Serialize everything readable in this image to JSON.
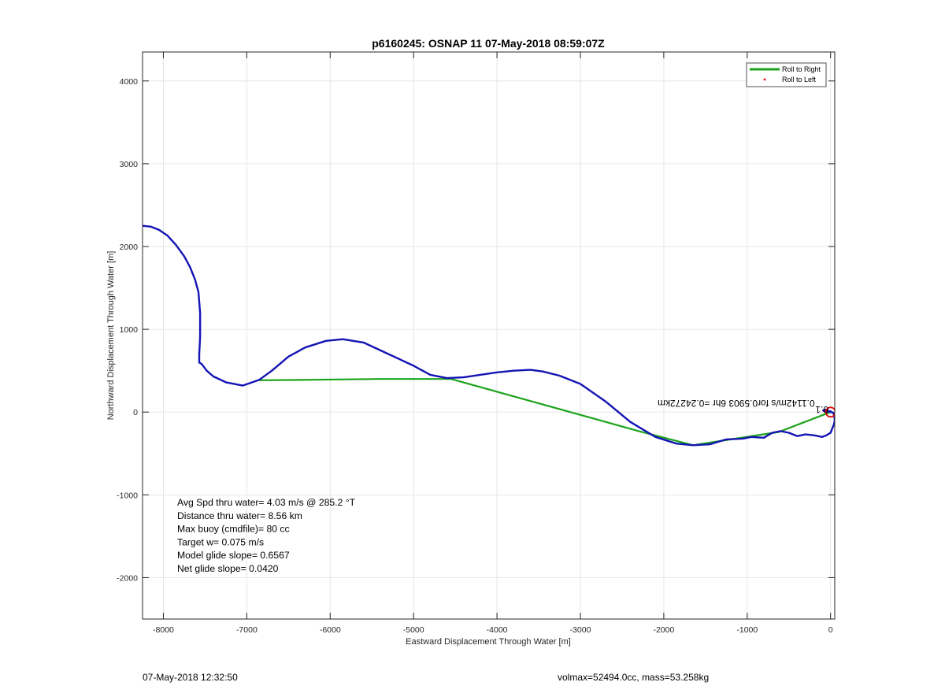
{
  "chart_data": {
    "type": "line",
    "title": "p6160245: OSNAP 11 07-May-2018 08:59:07Z",
    "xlabel": "Eastward Displacement Through Water [m]",
    "ylabel": "Northward Displacement Through Water [m]",
    "xlim": [
      -8250,
      50
    ],
    "ylim": [
      -2500,
      4350
    ],
    "xticks": [
      -8000,
      -7000,
      -6000,
      -5000,
      -4000,
      -3000,
      -2000,
      -1000,
      0
    ],
    "yticks": [
      -2000,
      -1000,
      0,
      1000,
      2000,
      3000,
      4000
    ],
    "grid": true,
    "legend_position": "top-right",
    "legend": [
      {
        "label": "Roll to Right",
        "color": "#1aa31a",
        "style": "line"
      },
      {
        "label": "Roll to Left",
        "color": "#ff0000",
        "style": "dot"
      }
    ],
    "series": [
      {
        "name": "Roll to Right",
        "color": "#1aa31a",
        "x": [
          0,
          -620,
          -1650,
          -2300,
          -4550,
          -5400,
          -6200,
          -6850
        ],
        "y": [
          0,
          -240,
          -400,
          -230,
          400,
          400,
          390,
          385
        ]
      },
      {
        "color": "#1414b4",
        "x": [
          -8250,
          -8150,
          -8050,
          -7950,
          -7850,
          -7750,
          -7680,
          -7620,
          -7580,
          -7560,
          -7560,
          -7570,
          -7570,
          -7540,
          -7480,
          -7400,
          -7250,
          -7050,
          -6850,
          -6700,
          -6500,
          -6300,
          -6050,
          -5850,
          -5600,
          -5300,
          -5000,
          -4800,
          -4600,
          -4400,
          -4200,
          -4000,
          -3800,
          -3600,
          -3450,
          -3250,
          -3000,
          -2700,
          -2400,
          -2100,
          -1850,
          -1650,
          -1450,
          -1250,
          -1050,
          -950,
          -800,
          -700,
          -600,
          -500,
          -400,
          -300,
          -200,
          -100,
          -50,
          0,
          40,
          50,
          40,
          0,
          -60,
          -90,
          -60,
          0
        ],
        "y": [
          2250,
          2240,
          2200,
          2130,
          2020,
          1880,
          1750,
          1600,
          1450,
          1200,
          900,
          700,
          600,
          580,
          500,
          430,
          360,
          320,
          390,
          500,
          670,
          780,
          860,
          880,
          840,
          700,
          560,
          450,
          410,
          420,
          450,
          480,
          500,
          510,
          490,
          440,
          340,
          130,
          -120,
          -300,
          -380,
          -400,
          -390,
          -330,
          -320,
          -300,
          -310,
          -250,
          -230,
          -250,
          -290,
          -270,
          -280,
          -300,
          -280,
          -250,
          -150,
          -100,
          -20,
          10,
          0,
          20,
          30,
          0
        ]
      }
    ],
    "annotations": [
      {
        "text": "Avg Spd thru water=  4.03 m/s @ 285.2 °T"
      },
      {
        "text": "Distance thru water=  8.56 km"
      },
      {
        "text": "Max buoy (cmdfile)= 80 cc"
      },
      {
        "text": "Target w= 0.075 m/s"
      },
      {
        "text": "Model glide slope= 0.6567"
      },
      {
        "text": "Net glide slope= 0.0420"
      }
    ],
    "rotated_annotation": "0.1142m/s for0.5903 6hr =0.24272km",
    "rotated_annotation_overlap": "0.1",
    "end_marker": {
      "x": 0,
      "y": 0,
      "color": "#e00000"
    }
  },
  "footer": {
    "timestamp": "07-May-2018 12:32:50",
    "glider_info": "volmax=52494.0cc, mass=53.258kg"
  }
}
